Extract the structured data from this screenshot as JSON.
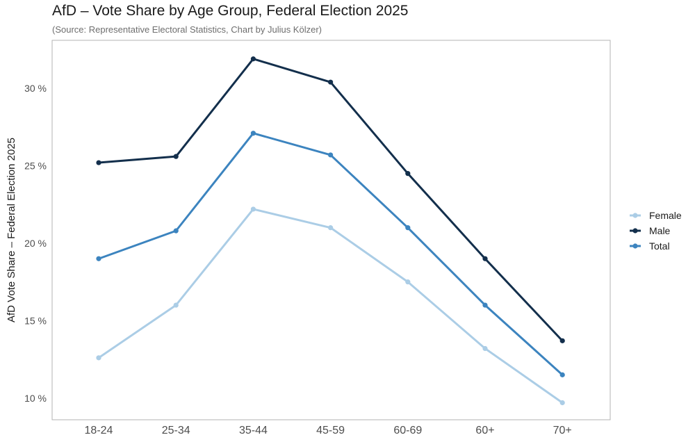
{
  "chart_data": {
    "type": "line",
    "title": "AfD – Vote Share by Age Group, Federal Election 2025",
    "subtitle": "(Source: Representative Electoral Statistics, Chart by Julius Kölzer)",
    "xlabel": "",
    "ylabel": "AfD Vote Share – Federal Election 2025",
    "categories": [
      "18-24",
      "25-34",
      "35-44",
      "45-59",
      "60-69",
      "60+",
      "70+"
    ],
    "ylim": [
      8.6,
      33.1
    ],
    "yticks": [
      10,
      15,
      20,
      25,
      30
    ],
    "ytick_labels": [
      "10 %",
      "15 %",
      "20 %",
      "25 %",
      "30 %"
    ],
    "legend_position": "right",
    "series": [
      {
        "name": "Female",
        "color": "#abcde6",
        "values": [
          12.6,
          16.0,
          22.2,
          21.0,
          17.5,
          13.2,
          9.7
        ]
      },
      {
        "name": "Male",
        "color": "#132f4c",
        "values": [
          25.2,
          25.6,
          31.9,
          30.4,
          24.5,
          19.0,
          13.7
        ]
      },
      {
        "name": "Total",
        "color": "#3c84bf",
        "values": [
          19.0,
          20.8,
          27.1,
          25.7,
          21.0,
          16.0,
          11.5
        ]
      }
    ]
  }
}
